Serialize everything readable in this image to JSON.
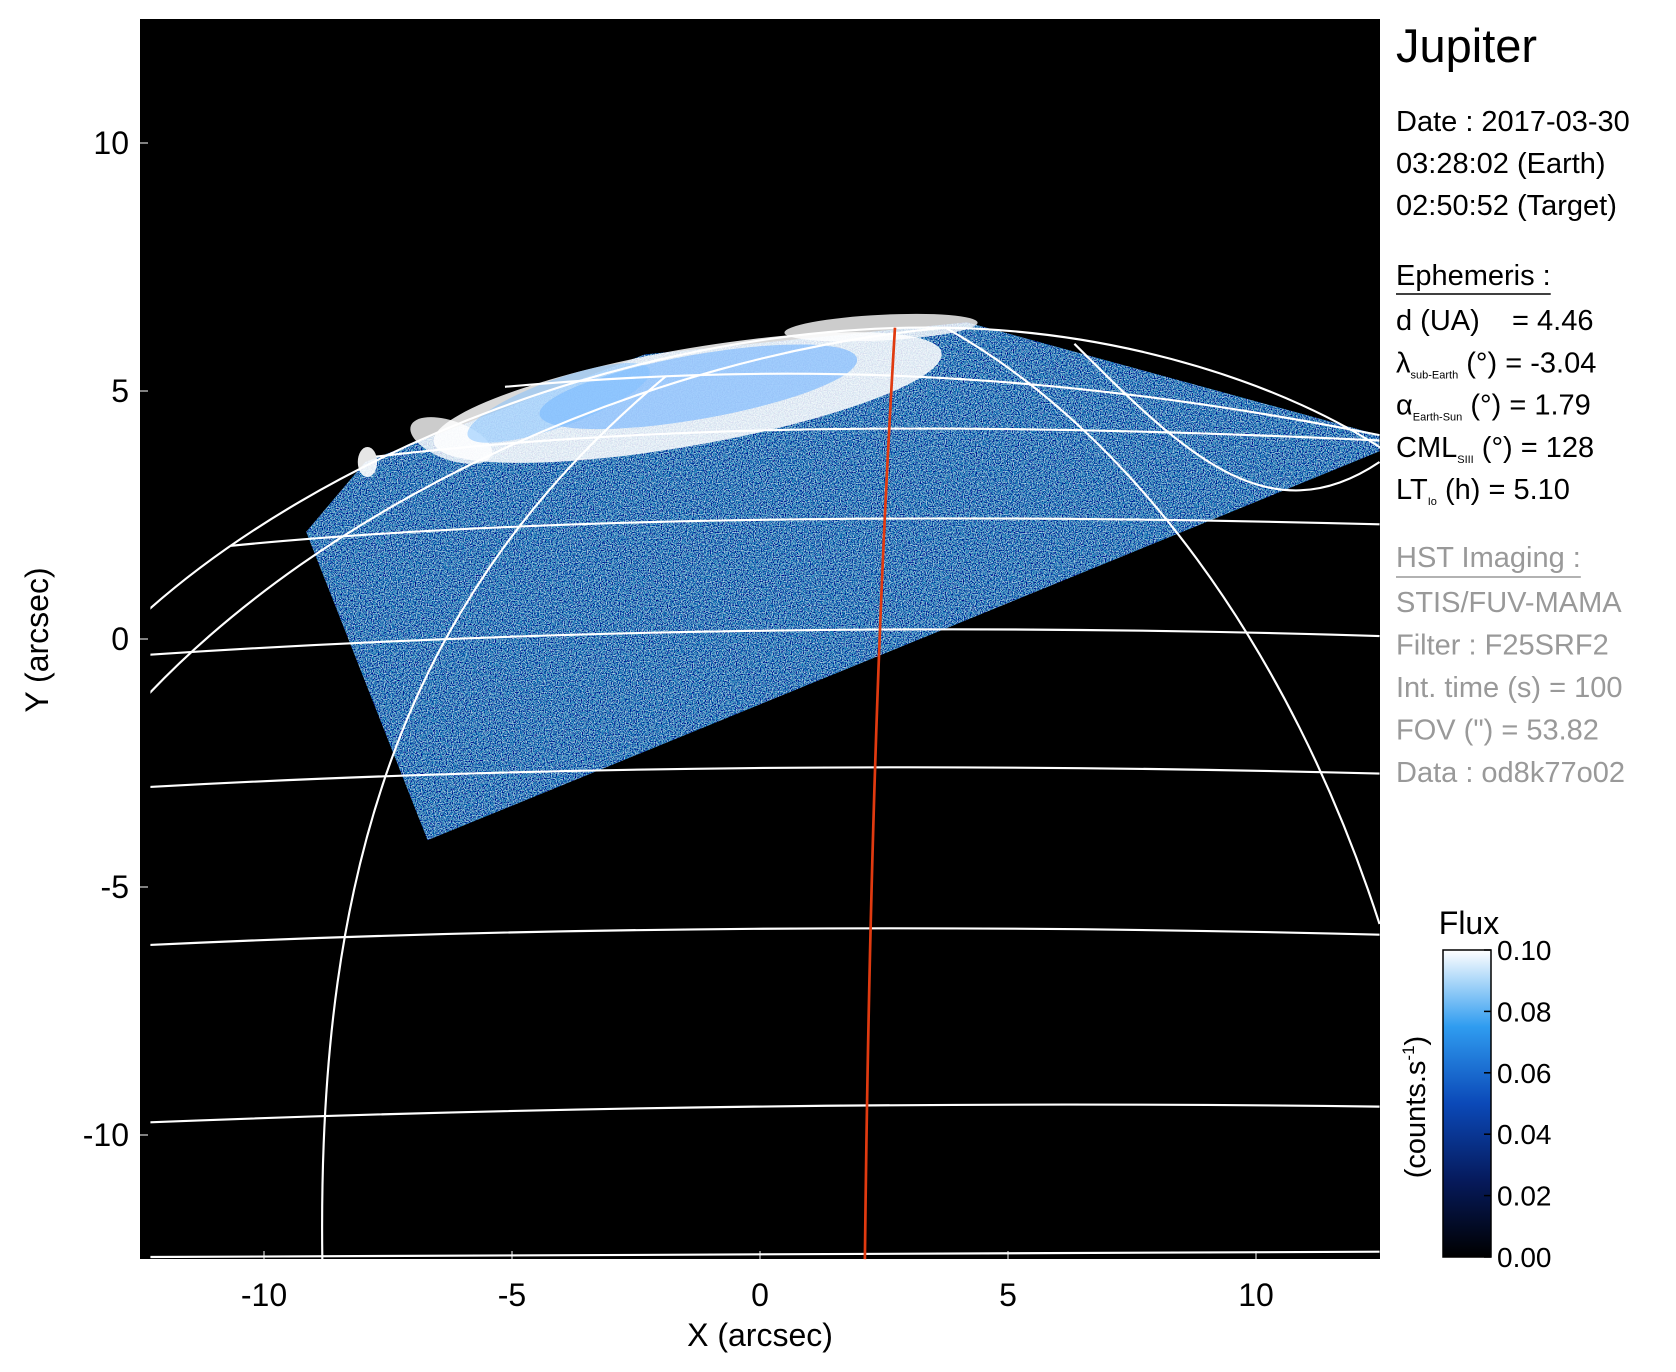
{
  "chart_data": {
    "type": "image",
    "xlabel": "X (arcsec)",
    "ylabel": "Y (arcsec)",
    "xlim": [
      -12.5,
      12.5
    ],
    "ylim": [
      -12.5,
      12.5
    ],
    "xticks": [
      -10,
      -5,
      0,
      5,
      10
    ],
    "yticks": [
      -10,
      -5,
      0,
      5,
      10
    ],
    "colorbar": {
      "title": "Flux",
      "label_parts": [
        "(counts.s",
        "-1",
        ")"
      ],
      "clim": [
        0,
        0.1
      ],
      "ticks": [
        {
          "value": 0,
          "label": "0.00"
        },
        {
          "value": 0.02,
          "label": "0.02"
        },
        {
          "value": 0.04,
          "label": "0.04"
        },
        {
          "value": 0.06,
          "label": "0.06"
        },
        {
          "value": 0.08,
          "label": "0.08"
        },
        {
          "value": 0.1,
          "label": "0.10"
        }
      ]
    },
    "info_panel": {
      "title": "Jupiter",
      "date_lines": [
        "Date : 2017-03-30",
        "03:28:02 (Earth)",
        "02:50:52 (Target)"
      ],
      "ephemeris_heading": "Ephemeris :",
      "ephemeris_rows": [
        {
          "symbol": "d (UA)    = 4.46"
        },
        {
          "symbol": "λ",
          "sub": "sub-Earth",
          "text": " (°) = -3.04"
        },
        {
          "symbol": "α",
          "sub": "Earth-Sun",
          "text": " (°) = 1.79"
        },
        {
          "symbol": "CML",
          "sub": "SIII",
          "text": " (°) = 128"
        },
        {
          "symbol": "LT",
          "sub": "Io",
          "text": " (h) = 5.10"
        }
      ],
      "imaging_heading": "HST Imaging :",
      "imaging_lines": [
        "STIS/FUV-MAMA",
        "Filter : F25SRF2",
        "Int. time (s) = 100",
        "FOV (\") = 53.82",
        "Data : od8k77o02"
      ]
    }
  }
}
